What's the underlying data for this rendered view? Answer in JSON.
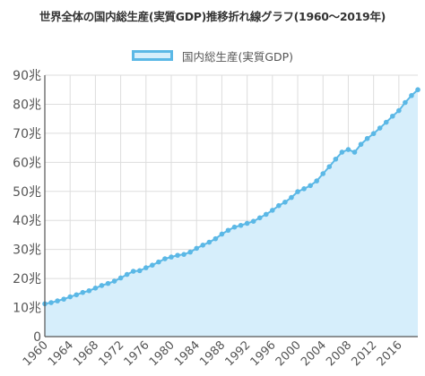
{
  "chart_data": {
    "type": "area",
    "title": "世界全体の国内総生産(実質GDP)推移折れ線グラフ(1960～2019年)",
    "legend": {
      "label": "国内総生産(実質GDP)",
      "position": "top"
    },
    "y_tick_labels": [
      "0",
      "10兆",
      "20兆",
      "30兆",
      "40兆",
      "50兆",
      "60兆",
      "70兆",
      "80兆",
      "90兆"
    ],
    "y_ticks": [
      0,
      10,
      20,
      30,
      40,
      50,
      60,
      70,
      80,
      90
    ],
    "x_tick_labels": [
      "1960",
      "1964",
      "1968",
      "1972",
      "1976",
      "1980",
      "1984",
      "1988",
      "1992",
      "1996",
      "2000",
      "2004",
      "2008",
      "2012",
      "2016"
    ],
    "ylim": [
      0,
      90
    ],
    "xlim": [
      1960,
      2019
    ],
    "grid": true,
    "colors": {
      "line": "#5bb8e6",
      "fill": "#d6eefb",
      "grid": "#dddddd",
      "axis": "#555555"
    },
    "series": [
      {
        "name": "国内総生産(実質GDP)",
        "x": [
          1960,
          1961,
          1962,
          1963,
          1964,
          1965,
          1966,
          1967,
          1968,
          1969,
          1970,
          1971,
          1972,
          1973,
          1974,
          1975,
          1976,
          1977,
          1978,
          1979,
          1980,
          1981,
          1982,
          1983,
          1984,
          1985,
          1986,
          1987,
          1988,
          1989,
          1990,
          1991,
          1992,
          1993,
          1994,
          1995,
          1996,
          1997,
          1998,
          1999,
          2000,
          2001,
          2002,
          2003,
          2004,
          2005,
          2006,
          2007,
          2008,
          2009,
          2010,
          2011,
          2012,
          2013,
          2014,
          2015,
          2016,
          2017,
          2018,
          2019
        ],
        "values": [
          11.3,
          11.7,
          12.3,
          12.9,
          13.7,
          14.4,
          15.2,
          15.8,
          16.7,
          17.6,
          18.3,
          19.1,
          20.2,
          21.4,
          22.5,
          22.7,
          23.7,
          24.6,
          25.7,
          26.8,
          27.4,
          28.0,
          28.3,
          29.1,
          30.4,
          31.5,
          32.5,
          33.7,
          35.3,
          36.6,
          37.7,
          38.3,
          39.0,
          39.7,
          40.9,
          42.1,
          43.5,
          45.1,
          46.3,
          47.9,
          49.9,
          50.9,
          52.0,
          53.6,
          56.1,
          58.5,
          61.1,
          63.5,
          64.4,
          63.5,
          66.2,
          68.2,
          69.9,
          71.8,
          73.8,
          75.9,
          77.8,
          80.6,
          83.0,
          85.0
        ]
      }
    ]
  }
}
